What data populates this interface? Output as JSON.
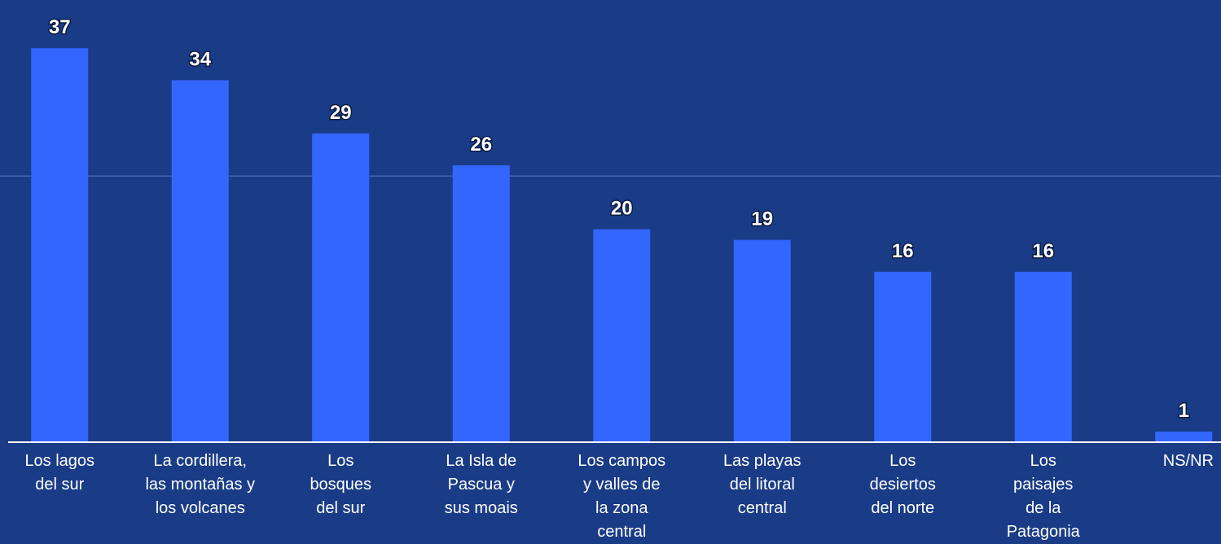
{
  "chart_data": {
    "type": "bar",
    "categories": [
      "Los lagos\ndel sur",
      "La cordillera,\nlas montañas y\nlos volcanes",
      "Los\nbosques\ndel sur",
      "La Isla de\nPascua y\nsus moais",
      "Los campos\ny valles de\nla zona\ncentral",
      "Las playas\ndel litoral\ncentral",
      "Los\ndesiertos\ndel norte",
      "Los\npaisajes\nde la\nPatagonia",
      "NS/NR"
    ],
    "values": [
      37,
      34,
      29,
      26,
      20,
      19,
      16,
      16,
      1
    ],
    "color": "#3366ff",
    "ylim": [
      0,
      40
    ],
    "yticks": [
      25
    ],
    "grid": true,
    "ytick_labels": false
  }
}
